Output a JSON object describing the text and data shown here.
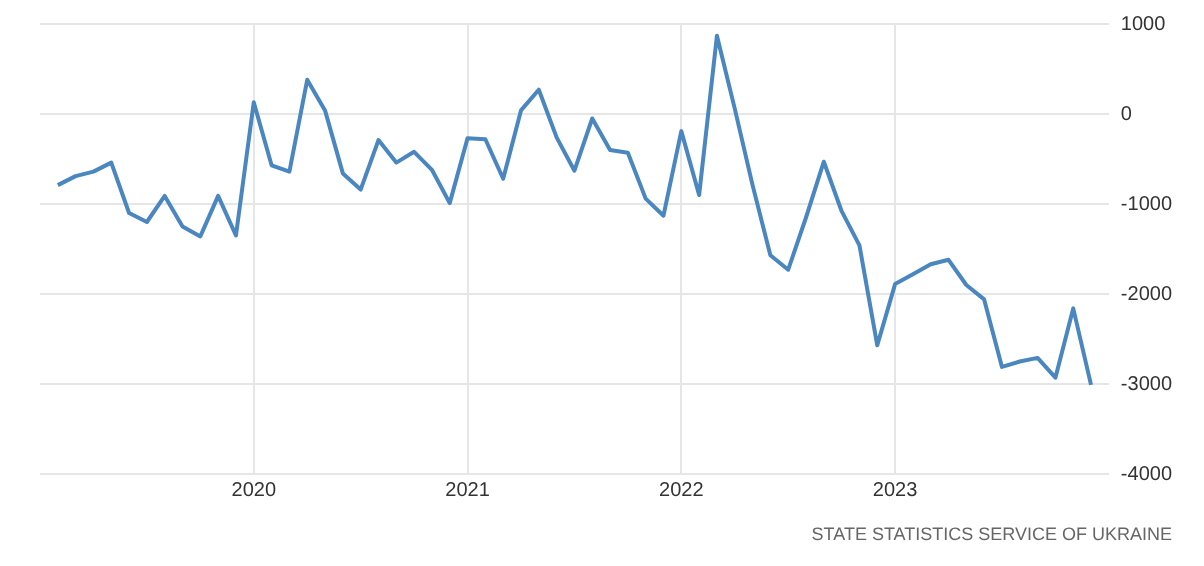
{
  "chart_data": {
    "type": "line",
    "x": [
      "2019-02",
      "2019-03",
      "2019-04",
      "2019-05",
      "2019-06",
      "2019-07",
      "2019-08",
      "2019-09",
      "2019-10",
      "2019-11",
      "2019-12",
      "2020-01",
      "2020-02",
      "2020-03",
      "2020-04",
      "2020-05",
      "2020-06",
      "2020-07",
      "2020-08",
      "2020-09",
      "2020-10",
      "2020-11",
      "2020-12",
      "2021-01",
      "2021-02",
      "2021-03",
      "2021-04",
      "2021-05",
      "2021-06",
      "2021-07",
      "2021-08",
      "2021-09",
      "2021-10",
      "2021-11",
      "2021-12",
      "2022-01",
      "2022-02",
      "2022-03",
      "2022-04",
      "2022-05",
      "2022-06",
      "2022-07",
      "2022-08",
      "2022-09",
      "2022-10",
      "2022-11",
      "2022-12",
      "2023-01",
      "2023-02",
      "2023-03",
      "2023-04",
      "2023-05",
      "2023-06",
      "2023-07",
      "2023-08",
      "2023-09",
      "2023-10",
      "2023-11",
      "2023-12"
    ],
    "series": [
      {
        "color": "#4a86bf",
        "values": [
          -790,
          -690,
          -640,
          -540,
          -1100,
          -1200,
          -910,
          -1250,
          -1360,
          -910,
          -1350,
          130,
          -570,
          -640,
          380,
          40,
          -660,
          -840,
          -290,
          -540,
          -420,
          -620,
          -990,
          -270,
          -280,
          -720,
          40,
          270,
          -260,
          -630,
          -50,
          -400,
          -430,
          -940,
          -1130,
          -190,
          -900,
          870,
          60,
          -790,
          -1570,
          -1730,
          -1150,
          -530,
          -1080,
          -1460,
          -2570,
          -1890,
          -1780,
          -1670,
          -1620,
          -1900,
          -2060,
          -2810,
          -2750,
          -2710,
          -2930,
          -2160,
          -3010
        ]
      }
    ],
    "xlim": [
      "2019-01",
      "2024-01"
    ],
    "xticks": [
      "2020",
      "2021",
      "2022",
      "2023"
    ],
    "ylim": [
      -4000,
      1000
    ],
    "yticks": [
      -4000,
      -3000,
      -2000,
      -1000,
      0,
      1000
    ],
    "grid": true,
    "legend": false,
    "marker": "none",
    "line_style": "solid",
    "annotations": [
      "STATE STATISTICS SERVICE OF UKRAINE"
    ]
  }
}
